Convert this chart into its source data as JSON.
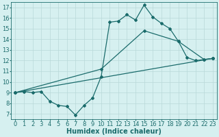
{
  "title": "",
  "xlabel": "Humidex (Indice chaleur)",
  "bg_color": "#d6f0f0",
  "grid_color": "#b8d8d8",
  "line_color": "#1a6b6b",
  "xlim": [
    -0.5,
    23.5
  ],
  "ylim": [
    6.5,
    17.5
  ],
  "xticks": [
    0,
    1,
    2,
    3,
    4,
    5,
    6,
    7,
    8,
    9,
    10,
    11,
    12,
    13,
    14,
    15,
    16,
    17,
    18,
    19,
    20,
    21,
    22,
    23
  ],
  "yticks": [
    7,
    8,
    9,
    10,
    11,
    12,
    13,
    14,
    15,
    16,
    17
  ],
  "line1_x": [
    0,
    1,
    2,
    3,
    4,
    5,
    6,
    7,
    8,
    9,
    10,
    11,
    12,
    13,
    14,
    15,
    16,
    17,
    18,
    19,
    20,
    21,
    22,
    23
  ],
  "line1_y": [
    9.0,
    9.1,
    9.0,
    9.1,
    8.2,
    7.8,
    7.7,
    6.9,
    7.8,
    8.5,
    10.5,
    15.6,
    15.7,
    16.3,
    15.8,
    17.2,
    16.1,
    15.5,
    15.0,
    13.8,
    12.3,
    12.0,
    12.1,
    12.2
  ],
  "line2_x": [
    0,
    10,
    15,
    19,
    22,
    23
  ],
  "line2_y": [
    9.0,
    11.2,
    14.8,
    13.8,
    12.1,
    12.2
  ],
  "line3_x": [
    0,
    23
  ],
  "line3_y": [
    9.0,
    12.2
  ],
  "marker_size": 2.0,
  "line_width": 0.9,
  "font_size_label": 7,
  "font_size_tick": 6
}
